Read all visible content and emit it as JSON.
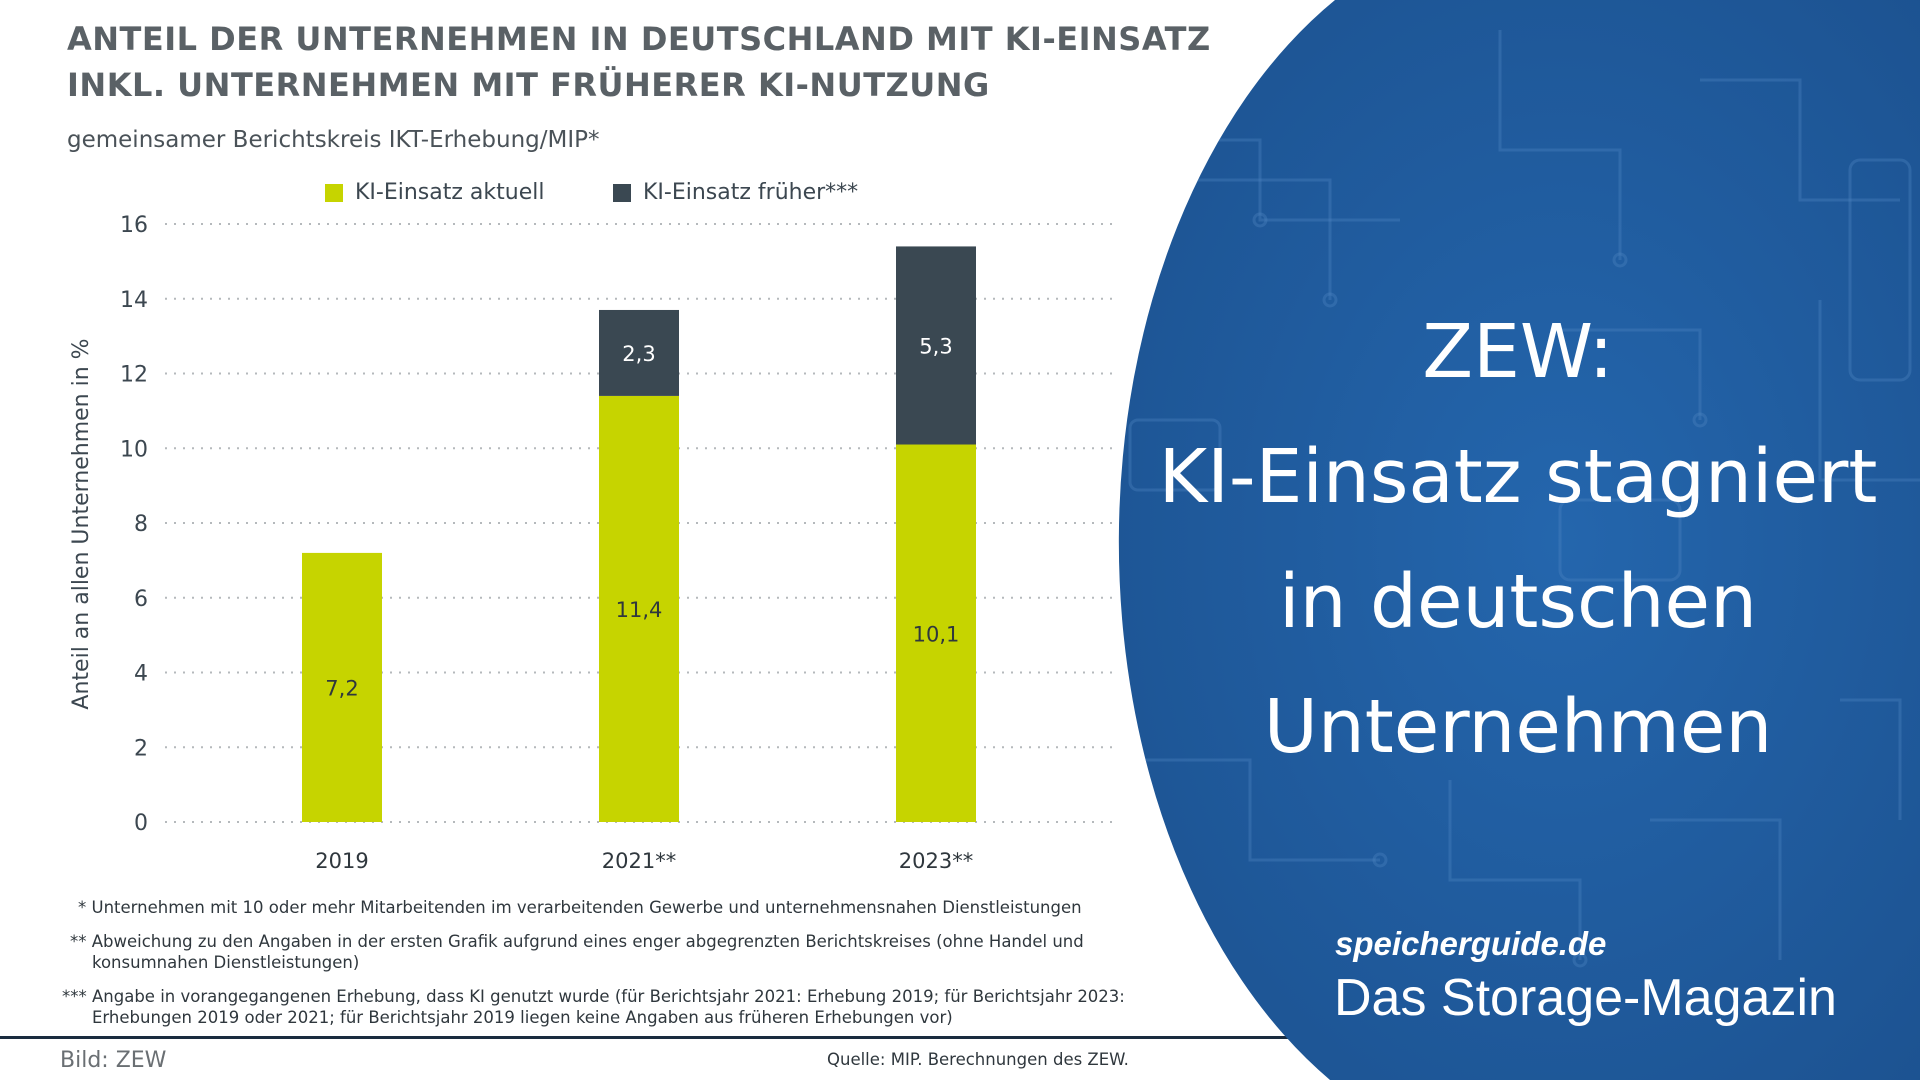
{
  "chart_data": {
    "type": "bar",
    "stacked": true,
    "title": "ANTEIL DER UNTERNEHMEN IN DEUTSCHLAND MIT KI-EINSATZ INKL. UNTERNEHMEN MIT FRÜHERER KI-NUTZUNG",
    "subtitle": "gemeinsamer Berichtskreis IKT-Erhebung/MIP*",
    "ylabel": "Anteil an allen Unternehmen in %",
    "xlabel": "",
    "ylim": [
      0,
      16
    ],
    "yticks": [
      0,
      2,
      4,
      6,
      8,
      10,
      12,
      14,
      16
    ],
    "categories": [
      "2019",
      "2021**",
      "2023**"
    ],
    "series": [
      {
        "name": "KI-Einsatz aktuell",
        "values": [
          7.2,
          11.4,
          10.1
        ],
        "labels": [
          "7,2",
          "11,4",
          "10,1"
        ],
        "color": "#c6d400"
      },
      {
        "name": "KI-Einsatz früher***",
        "values": [
          0,
          2.3,
          5.3
        ],
        "labels": [
          "",
          "2,3",
          "5,3"
        ],
        "color": "#3a4852"
      }
    ],
    "grid": true,
    "legend_position": "top"
  },
  "footnotes": [
    "* Unternehmen mit 10 oder mehr Mitarbeitenden im verarbeitenden Gewerbe und unternehmensnahen Dienstleistungen",
    "** Abweichung zu den Angaben in der ersten Grafik aufgrund eines enger abgegrenzten Berichtskreises (ohne Handel und konsumnahen Dienstleistungen)",
    "*** Angabe in vorangegangenen Erhebung, dass KI genutzt wurde (für Berichtsjahr 2021: Erhebung 2019; für Berichtsjahr 2023: Erhebungen 2019 oder 2021; für Berichtsjahr 2019 liegen keine Angaben aus früheren Erhebungen vor)"
  ],
  "source": "Quelle: MIP. Berechnungen des ZEW.",
  "credit": "Bild: ZEW",
  "headline": {
    "line1": "ZEW:",
    "line2": "KI-Einsatz stagniert",
    "line3": "in deutschen",
    "line4": "Unternehmen"
  },
  "brand": {
    "name": "speicherguide.de",
    "tagline": "Das Storage-Magazin"
  },
  "colors": {
    "panel_blue": "#1f5a9c",
    "current": "#c6d400",
    "former": "#3a4852"
  }
}
